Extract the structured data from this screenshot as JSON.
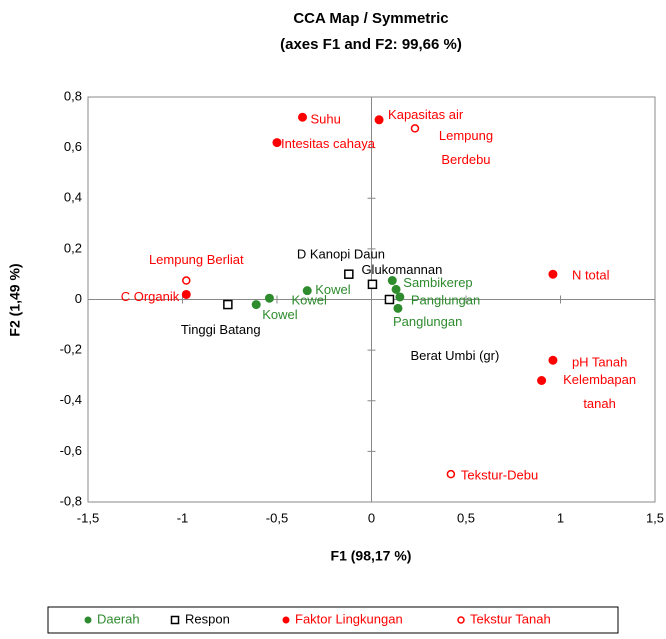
{
  "chart_data": {
    "type": "scatter",
    "title": [
      "CCA Map / Symmetric",
      "(axes F1 and F2: 99,66 %)"
    ],
    "xlabel": "F1 (98,17 %)",
    "ylabel": "F2 (1,49 %)",
    "xlim": [
      -1.5,
      1.5
    ],
    "ylim": [
      -0.8,
      0.8
    ],
    "xticks": [
      {
        "value": -1.5,
        "label": "-1,5"
      },
      -1,
      {
        "value": -0.5,
        "label": "-0,5"
      },
      0,
      {
        "value": 0.5,
        "label": "0,5"
      },
      1,
      {
        "value": 1.5,
        "label": "1,5"
      }
    ],
    "yticks": [
      {
        "value": -0.8,
        "label": "-0,8"
      },
      {
        "value": -0.6,
        "label": "-0,6"
      },
      {
        "value": -0.4,
        "label": "-0,4"
      },
      {
        "value": -0.2,
        "label": "-0,2"
      },
      0,
      {
        "value": 0.2,
        "label": "0,2"
      },
      {
        "value": 0.4,
        "label": "0,4"
      },
      {
        "value": 0.6,
        "label": "0,6"
      },
      {
        "value": 0.8,
        "label": "0,8"
      }
    ],
    "legend": "bottom",
    "series": [
      {
        "name": "Daerah",
        "color": "#2e8b2e",
        "marker": "filled-circle",
        "label_color": "#2e8b2e",
        "x": [
          -0.34,
          -0.54,
          -0.61,
          0.11,
          0.13,
          0.15,
          0.14
        ],
        "values": [
          0.035,
          0.005,
          -0.02,
          0.075,
          0.04,
          0.01,
          -0.035
        ],
        "labels": [
          "Kowel",
          "Kowel",
          "Kowel",
          "Sambikerep",
          null,
          "Panglungan",
          "Panglungan"
        ]
      },
      {
        "name": "Respon",
        "color": "#000000",
        "marker": "open-square",
        "label_color": "#000000",
        "x": [
          -0.12,
          0.005,
          -0.76,
          0.095
        ],
        "values": [
          0.1,
          0.06,
          -0.02,
          0.0
        ],
        "labels": [
          "D Kanopi Daun",
          "Glukomannan",
          "Tinggi Batang",
          "Berat Umbi (gr)"
        ]
      },
      {
        "name": "Faktor Lingkungan",
        "color": "#ff0000",
        "marker": "filled-circle",
        "label_color": "#ff0000",
        "x": [
          -0.365,
          0.04,
          -0.5,
          0.96,
          -0.98,
          0.96,
          0.9
        ],
        "values": [
          0.72,
          0.71,
          0.62,
          0.1,
          0.02,
          -0.24,
          -0.32
        ],
        "labels": [
          "Suhu",
          "Kapasitas air",
          "Intesitas cahaya",
          "N total",
          "C Organik",
          "pH Tanah",
          [
            "Kelembapan",
            "tanah"
          ]
        ]
      },
      {
        "name": "Tekstur Tanah",
        "color": "#ff0000",
        "marker": "open-circle",
        "label_color": "#ff0000",
        "x": [
          0.23,
          -0.98,
          0.42
        ],
        "values": [
          0.676,
          0.075,
          -0.69
        ],
        "labels": [
          [
            "Lempung",
            "Berdebu"
          ],
          "Lempung Berliat",
          "Tekstur-Debu"
        ]
      }
    ]
  }
}
